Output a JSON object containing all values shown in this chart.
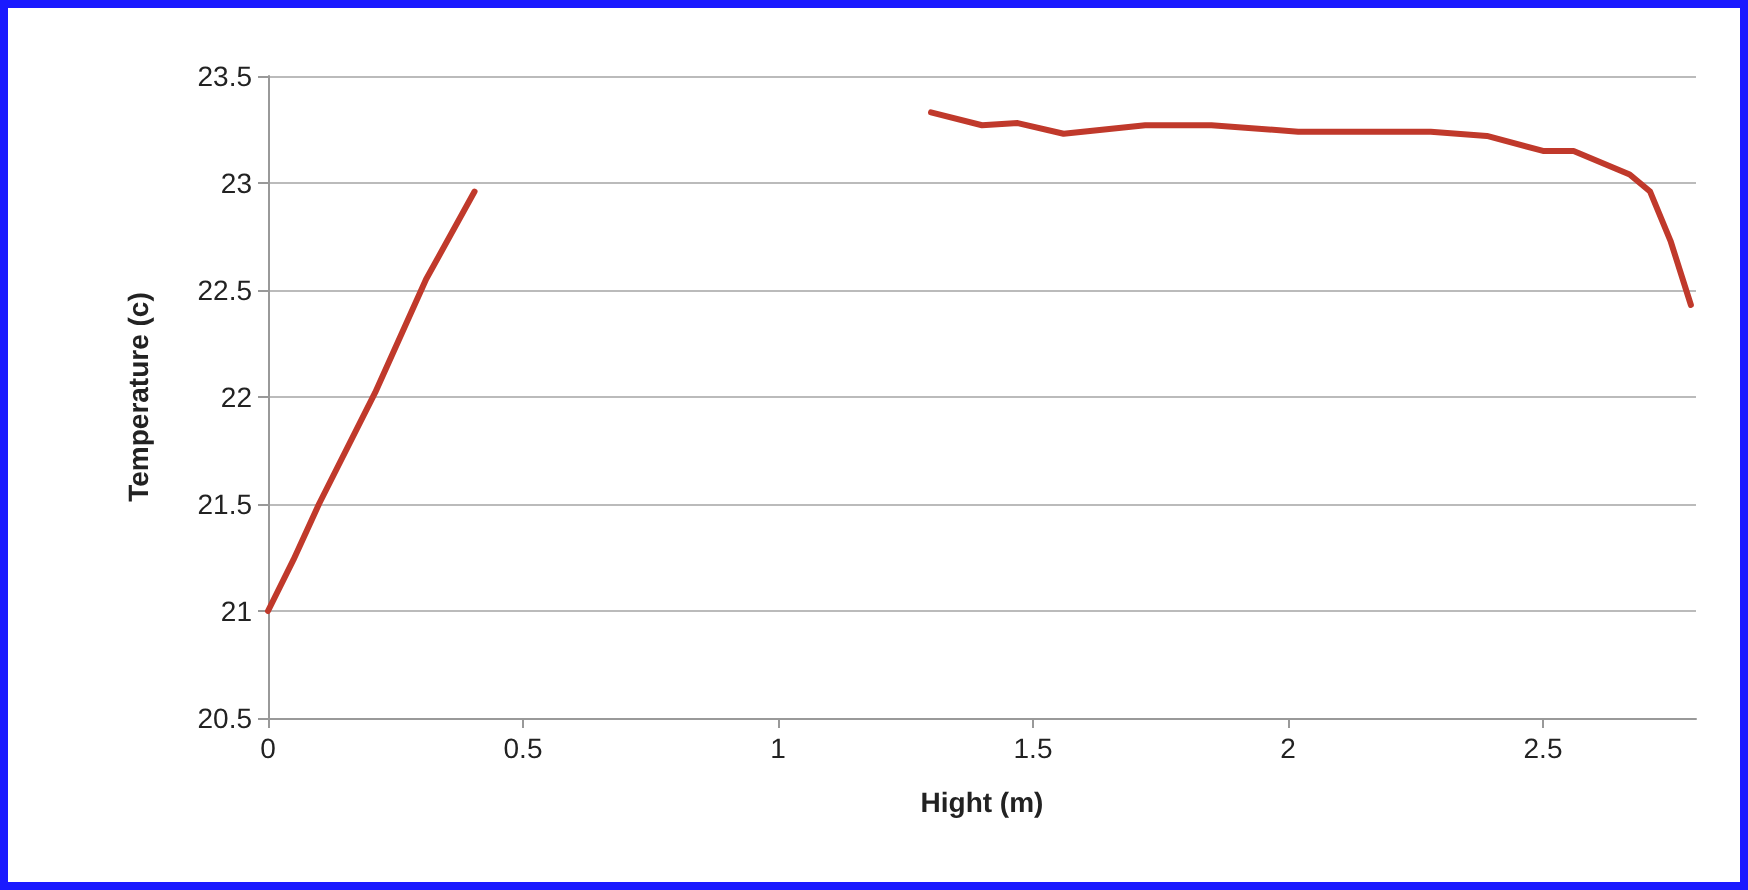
{
  "chart_data": {
    "type": "line",
    "xlabel": "Hight (m)",
    "ylabel": "Temperature (c)",
    "x": [
      0,
      0.05,
      0.1,
      0.21,
      0.31,
      0.405,
      0.85,
      1.3,
      1.4,
      1.47,
      1.56,
      1.72,
      1.85,
      2.02,
      2.28,
      2.39,
      2.5,
      2.56,
      2.67,
      2.71,
      2.75,
      2.79
    ],
    "series": [
      {
        "color": "#c0392b",
        "values": [
          21,
          21.24,
          21.5,
          22.02,
          22.55,
          22.96,
          null,
          23.33,
          23.27,
          23.28,
          23.23,
          23.27,
          23.27,
          23.24,
          23.24,
          23.22,
          23.15,
          23.15,
          23.04,
          22.96,
          22.73,
          22.43
        ]
      }
    ],
    "xlim": [
      0,
      2.8
    ],
    "xticks": [
      0,
      0.5,
      1,
      1.5,
      2,
      2.5
    ],
    "ylim": [
      20.5,
      23.5
    ],
    "yticks": [
      20.5,
      21,
      21.5,
      22,
      22.5,
      23,
      23.5
    ],
    "grid": "y",
    "marker": "none",
    "line_style": "solid"
  }
}
